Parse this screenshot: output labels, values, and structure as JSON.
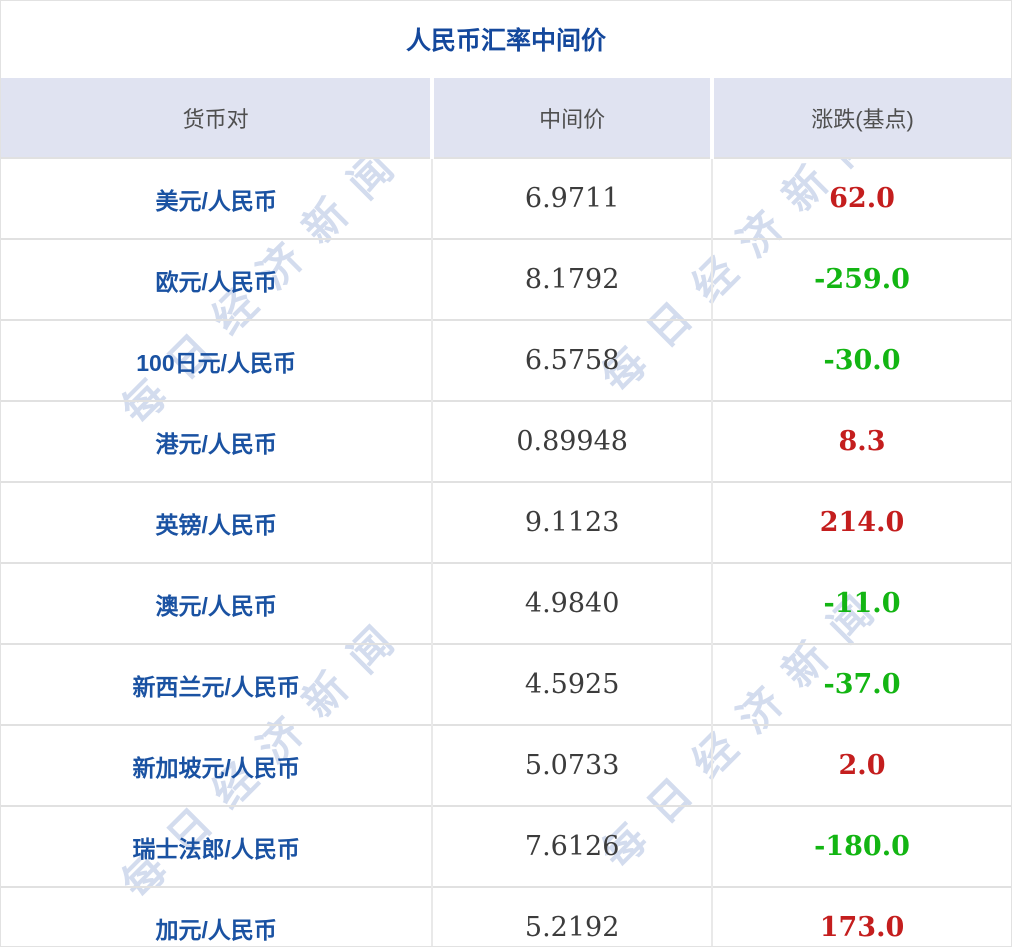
{
  "title": "人民币汇率中间价",
  "watermark": {
    "text": "每日经济新闻",
    "color": "#d3dcee"
  },
  "table": {
    "headers": [
      "货币对",
      "中间价",
      "涨跌(基点)"
    ],
    "header_bg": "#e0e3f1",
    "change_colors": {
      "up": "#c41e1e",
      "down": "#13b513"
    },
    "pair_color": "#1a52a2",
    "title_color": "#14489c",
    "rows": [
      {
        "pair": "美元/人民币",
        "mid": "6.9711",
        "change": "62.0",
        "direction": "up"
      },
      {
        "pair": "欧元/人民币",
        "mid": "8.1792",
        "change": "-259.0",
        "direction": "down"
      },
      {
        "pair": "100日元/人民币",
        "mid": "6.5758",
        "change": "-30.0",
        "direction": "down"
      },
      {
        "pair": "港元/人民币",
        "mid": "0.89948",
        "change": "8.3",
        "direction": "up"
      },
      {
        "pair": "英镑/人民币",
        "mid": "9.1123",
        "change": "214.0",
        "direction": "up"
      },
      {
        "pair": "澳元/人民币",
        "mid": "4.9840",
        "change": "-11.0",
        "direction": "down"
      },
      {
        "pair": "新西兰元/人民币",
        "mid": "4.5925",
        "change": "-37.0",
        "direction": "down"
      },
      {
        "pair": "新加坡元/人民币",
        "mid": "5.0733",
        "change": "2.0",
        "direction": "up"
      },
      {
        "pair": "瑞士法郎/人民币",
        "mid": "7.6126",
        "change": "-180.0",
        "direction": "down"
      },
      {
        "pair": "加元/人民币",
        "mid": "5.2192",
        "change": "173.0",
        "direction": "up"
      }
    ]
  },
  "chart_data": {
    "type": "table",
    "title": "人民币汇率中间价",
    "columns": [
      "货币对",
      "中间价",
      "涨跌(基点)"
    ],
    "rows": [
      [
        "美元/人民币",
        6.9711,
        62.0
      ],
      [
        "欧元/人民币",
        8.1792,
        -259.0
      ],
      [
        "100日元/人民币",
        6.5758,
        -30.0
      ],
      [
        "港元/人民币",
        0.89948,
        8.3
      ],
      [
        "英镑/人民币",
        9.1123,
        214.0
      ],
      [
        "澳元/人民币",
        4.984,
        -11.0
      ],
      [
        "新西兰元/人民币",
        4.5925,
        -37.0
      ],
      [
        "新加坡元/人民币",
        5.0733,
        2.0
      ],
      [
        "瑞士法郎/人民币",
        7.6126,
        -180.0
      ],
      [
        "加元/人民币",
        5.2192,
        173.0
      ]
    ],
    "notes": "positive change rendered red, negative change rendered green"
  }
}
